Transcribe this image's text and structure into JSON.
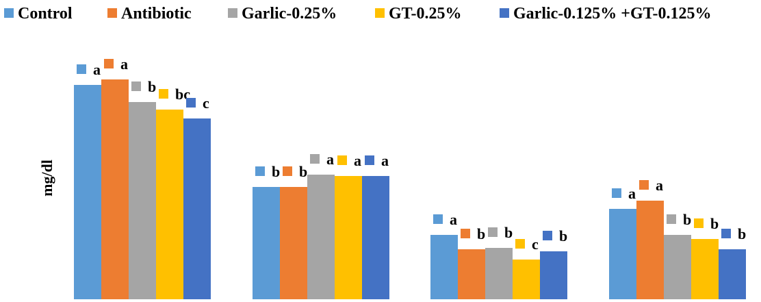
{
  "chart_data": {
    "type": "bar",
    "title": "",
    "xlabel": "",
    "ylabel": "mg/dl",
    "ylim": [
      0,
      340
    ],
    "grid": false,
    "legend_position": "top",
    "categories": [
      "",
      "",
      "",
      ""
    ],
    "series": [
      {
        "name": "Control",
        "color": "#5B9BD5",
        "values": [
          313,
          164,
          94,
          132
        ],
        "labels": [
          "a",
          "b",
          "a",
          "a"
        ]
      },
      {
        "name": "Antibiotic",
        "color": "#ED7D31",
        "values": [
          321,
          164,
          73,
          144
        ],
        "labels": [
          "a",
          "b",
          "b",
          "a"
        ]
      },
      {
        "name": "Garlic-0.25%",
        "color": "#A5A5A5",
        "values": [
          288,
          182,
          75,
          94
        ],
        "labels": [
          "b",
          "a",
          "b",
          "b"
        ]
      },
      {
        "name": "GT-0.25%",
        "color": "#FFC000",
        "values": [
          277,
          180,
          58,
          88
        ],
        "labels": [
          "bc",
          "a",
          "c",
          "b"
        ]
      },
      {
        "name": "Garlic-0.125% +GT-0.125%",
        "color": "#4472C4",
        "values": [
          264,
          180,
          70,
          73
        ],
        "labels": [
          "c",
          "a",
          "b",
          "b"
        ]
      }
    ]
  }
}
